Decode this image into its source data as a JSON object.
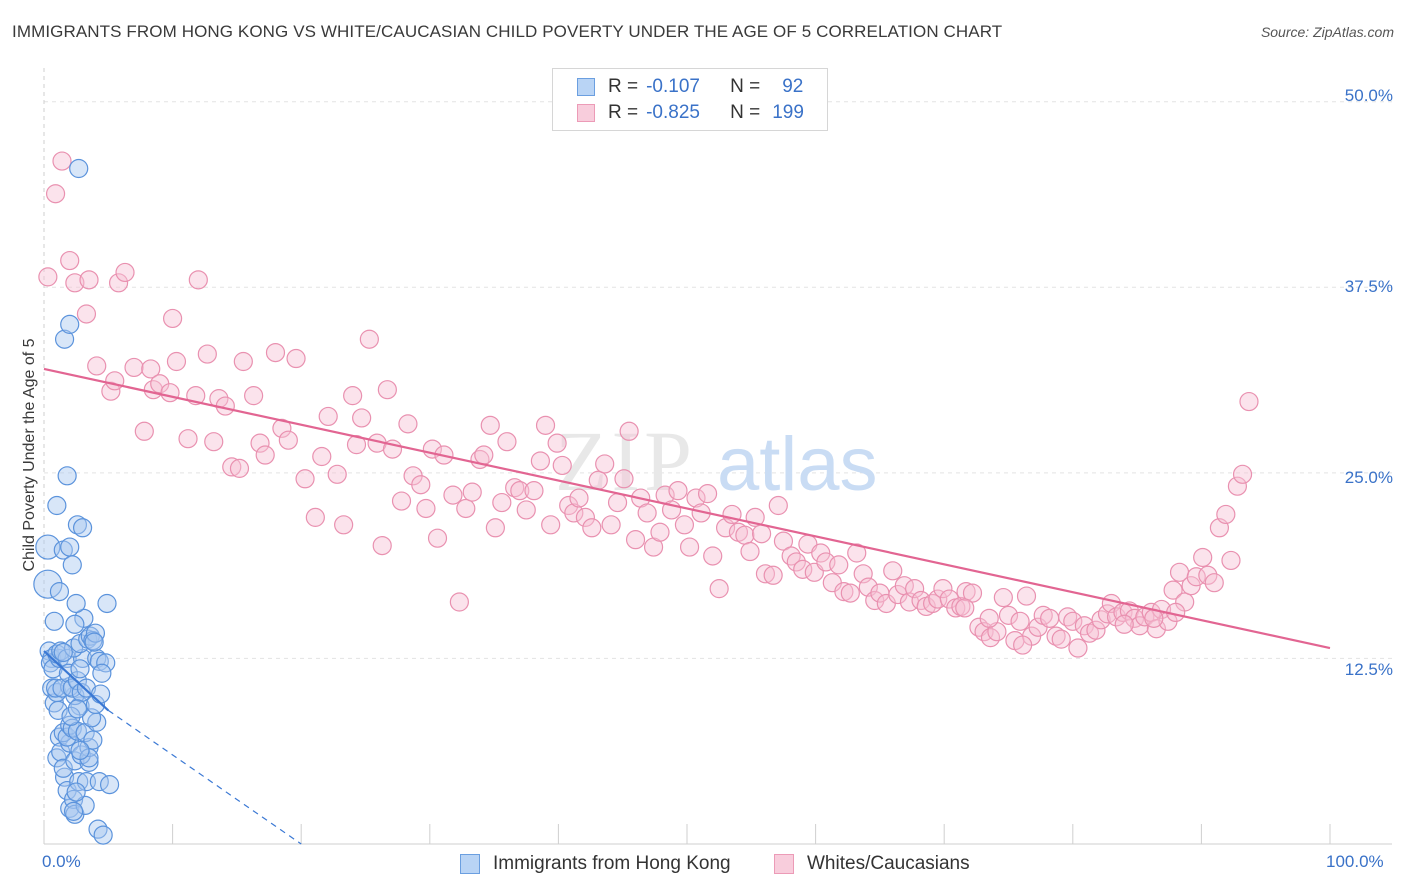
{
  "header": {
    "title": "IMMIGRANTS FROM HONG KONG VS WHITE/CAUCASIAN CHILD POVERTY UNDER THE AGE OF 5 CORRELATION CHART",
    "source": "Source: ZipAtlas.com"
  },
  "watermark": {
    "text_zip": "ZIP",
    "text_atlas": "atlas"
  },
  "colors": {
    "blue_fill": "#a9c8f0",
    "blue_stroke": "#5b93dc",
    "blue_line": "#3a78d4",
    "pink_fill": "#f6c2d4",
    "pink_stroke": "#e991b0",
    "pink_line": "#e26592",
    "tick_text": "#3a72c8",
    "grid": "#e3e3e3"
  },
  "legend": {
    "rows": [
      {
        "r_label": "R =",
        "r_value": "-0.107",
        "n_label": "N =",
        "n_value": "92"
      },
      {
        "r_label": "R =",
        "r_value": "-0.825",
        "n_label": "N =",
        "n_value": "199"
      }
    ]
  },
  "chart_data": {
    "type": "scatter",
    "title": "IMMIGRANTS FROM HONG KONG VS WHITE/CAUCASIAN CHILD POVERTY UNDER THE AGE OF 5 CORRELATION CHART",
    "xlabel": "",
    "ylabel": "Child Poverty Under the Age of 5",
    "xlim": [
      0,
      100
    ],
    "ylim": [
      0,
      52
    ],
    "x_tick_labels": [
      "0.0%",
      "100.0%"
    ],
    "y_ticks": [
      12.5,
      25.0,
      37.5,
      50.0
    ],
    "y_tick_labels": [
      "12.5%",
      "25.0%",
      "37.5%",
      "50.0%"
    ],
    "grid": true,
    "legend_position": "top-center",
    "series": [
      {
        "name": "Immigrants from Hong Kong",
        "color": "#5b93dc",
        "trend": {
          "x": [
            0,
            5
          ],
          "y": [
            13.0,
            9.0
          ],
          "dash_to": [
            20,
            0
          ]
        },
        "points": [
          [
            0.3,
            17.5
          ],
          [
            0.3,
            20.0
          ],
          [
            0.4,
            13.0
          ],
          [
            0.6,
            12.5
          ],
          [
            0.8,
            15.0
          ],
          [
            0.5,
            12.2
          ],
          [
            0.7,
            11.8
          ],
          [
            0.6,
            10.5
          ],
          [
            0.8,
            9.5
          ],
          [
            1.0,
            10.2
          ],
          [
            1.2,
            12.5
          ],
          [
            0.9,
            10.5
          ],
          [
            1.1,
            9.0
          ],
          [
            1.2,
            7.2
          ],
          [
            1.0,
            5.8
          ],
          [
            1.3,
            6.2
          ],
          [
            1.6,
            4.5
          ],
          [
            1.8,
            3.6
          ],
          [
            1.5,
            5.1
          ],
          [
            2.0,
            2.4
          ],
          [
            2.3,
            3.0
          ],
          [
            2.4,
            5.6
          ],
          [
            2.0,
            6.8
          ],
          [
            1.5,
            7.5
          ],
          [
            1.8,
            7.2
          ],
          [
            2.0,
            8.0
          ],
          [
            2.2,
            7.8
          ],
          [
            2.6,
            7.6
          ],
          [
            2.8,
            9.3
          ],
          [
            2.4,
            10.0
          ],
          [
            2.0,
            10.6
          ],
          [
            1.4,
            10.5
          ],
          [
            1.0,
            12.8
          ],
          [
            1.3,
            13.0
          ],
          [
            1.8,
            12.5
          ],
          [
            1.9,
            11.5
          ],
          [
            2.2,
            10.5
          ],
          [
            2.6,
            11.0
          ],
          [
            2.9,
            10.2
          ],
          [
            3.3,
            10.5
          ],
          [
            3.0,
            12.5
          ],
          [
            2.3,
            13.2
          ],
          [
            2.8,
            13.5
          ],
          [
            3.4,
            13.8
          ],
          [
            3.6,
            14.0
          ],
          [
            3.8,
            13.7
          ],
          [
            4.0,
            14.2
          ],
          [
            3.1,
            15.2
          ],
          [
            2.5,
            16.2
          ],
          [
            1.2,
            17.0
          ],
          [
            1.5,
            19.8
          ],
          [
            2.0,
            20.0
          ],
          [
            2.2,
            18.8
          ],
          [
            2.6,
            21.5
          ],
          [
            1.0,
            22.8
          ],
          [
            1.8,
            24.8
          ],
          [
            2.7,
            4.2
          ],
          [
            3.3,
            4.2
          ],
          [
            4.3,
            4.2
          ],
          [
            5.1,
            4.0
          ],
          [
            3.5,
            5.5
          ],
          [
            2.9,
            6.0
          ],
          [
            3.5,
            6.5
          ],
          [
            3.2,
            7.5
          ],
          [
            3.8,
            7.0
          ],
          [
            4.1,
            8.2
          ],
          [
            3.7,
            8.5
          ],
          [
            2.1,
            8.6
          ],
          [
            2.6,
            9.1
          ],
          [
            4.0,
            9.4
          ],
          [
            4.4,
            10.1
          ],
          [
            4.1,
            12.5
          ],
          [
            3.9,
            13.6
          ],
          [
            4.3,
            12.3
          ],
          [
            4.8,
            12.2
          ],
          [
            4.5,
            11.5
          ],
          [
            4.9,
            16.2
          ],
          [
            4.2,
            1.0
          ],
          [
            4.6,
            0.6
          ],
          [
            2.4,
            2.0
          ],
          [
            3.2,
            2.6
          ],
          [
            2.3,
            2.2
          ],
          [
            2.5,
            3.5
          ],
          [
            3.5,
            5.8
          ],
          [
            2.8,
            11.8
          ],
          [
            2.4,
            14.8
          ],
          [
            3.0,
            21.3
          ],
          [
            1.6,
            34.0
          ],
          [
            2.0,
            35.0
          ],
          [
            2.7,
            45.5
          ],
          [
            1.5,
            12.9
          ],
          [
            2.8,
            6.3
          ]
        ]
      },
      {
        "name": "Whites/Caucasians",
        "color": "#e991b0",
        "trend": {
          "x": [
            0,
            100
          ],
          "y": [
            32.0,
            13.2
          ]
        },
        "points": [
          [
            0.3,
            38.2
          ],
          [
            0.9,
            43.8
          ],
          [
            1.4,
            46.0
          ],
          [
            2.0,
            39.3
          ],
          [
            2.4,
            37.8
          ],
          [
            3.3,
            35.7
          ],
          [
            3.5,
            38.0
          ],
          [
            4.1,
            32.2
          ],
          [
            5.2,
            30.5
          ],
          [
            5.5,
            31.2
          ],
          [
            5.8,
            37.8
          ],
          [
            6.3,
            38.5
          ],
          [
            7.0,
            32.1
          ],
          [
            7.8,
            27.8
          ],
          [
            8.3,
            32.0
          ],
          [
            8.5,
            30.6
          ],
          [
            9.0,
            31.0
          ],
          [
            9.8,
            30.4
          ],
          [
            10.0,
            35.4
          ],
          [
            10.3,
            32.5
          ],
          [
            11.2,
            27.3
          ],
          [
            11.8,
            30.2
          ],
          [
            12.0,
            38.0
          ],
          [
            12.7,
            33.0
          ],
          [
            13.2,
            27.1
          ],
          [
            13.6,
            30.0
          ],
          [
            14.1,
            29.5
          ],
          [
            14.6,
            25.4
          ],
          [
            15.2,
            25.3
          ],
          [
            15.5,
            32.5
          ],
          [
            16.3,
            30.2
          ],
          [
            16.8,
            27.0
          ],
          [
            17.2,
            26.2
          ],
          [
            18.0,
            33.1
          ],
          [
            18.5,
            28.0
          ],
          [
            19.0,
            27.2
          ],
          [
            19.6,
            32.7
          ],
          [
            20.3,
            24.6
          ],
          [
            21.1,
            22.0
          ],
          [
            21.6,
            26.1
          ],
          [
            22.1,
            28.8
          ],
          [
            22.8,
            24.9
          ],
          [
            23.3,
            21.5
          ],
          [
            24.0,
            30.2
          ],
          [
            24.3,
            26.9
          ],
          [
            24.7,
            28.7
          ],
          [
            25.3,
            34.0
          ],
          [
            25.9,
            27.0
          ],
          [
            26.3,
            20.1
          ],
          [
            26.7,
            30.6
          ],
          [
            27.1,
            26.6
          ],
          [
            27.8,
            23.1
          ],
          [
            28.3,
            28.3
          ],
          [
            28.7,
            24.8
          ],
          [
            29.3,
            24.2
          ],
          [
            29.7,
            22.6
          ],
          [
            30.2,
            26.6
          ],
          [
            30.6,
            20.6
          ],
          [
            31.1,
            26.2
          ],
          [
            31.8,
            23.5
          ],
          [
            32.3,
            16.3
          ],
          [
            32.8,
            22.6
          ],
          [
            33.3,
            23.7
          ],
          [
            33.9,
            25.9
          ],
          [
            34.2,
            26.2
          ],
          [
            34.7,
            28.2
          ],
          [
            35.1,
            21.3
          ],
          [
            35.6,
            23.0
          ],
          [
            36.0,
            27.1
          ],
          [
            36.6,
            24.0
          ],
          [
            37.0,
            23.8
          ],
          [
            37.5,
            22.5
          ],
          [
            38.1,
            23.8
          ],
          [
            38.6,
            25.8
          ],
          [
            39.0,
            28.2
          ],
          [
            39.4,
            21.5
          ],
          [
            39.9,
            27.0
          ],
          [
            40.3,
            25.5
          ],
          [
            40.8,
            22.8
          ],
          [
            41.2,
            22.3
          ],
          [
            41.6,
            23.3
          ],
          [
            42.1,
            22.0
          ],
          [
            42.6,
            21.3
          ],
          [
            43.1,
            24.5
          ],
          [
            43.6,
            25.6
          ],
          [
            44.1,
            21.5
          ],
          [
            44.6,
            23.0
          ],
          [
            45.1,
            24.6
          ],
          [
            45.5,
            27.8
          ],
          [
            46.0,
            20.5
          ],
          [
            46.4,
            23.3
          ],
          [
            46.9,
            22.3
          ],
          [
            47.4,
            20.0
          ],
          [
            47.9,
            21.0
          ],
          [
            48.3,
            23.5
          ],
          [
            48.8,
            22.5
          ],
          [
            49.3,
            23.8
          ],
          [
            49.8,
            21.5
          ],
          [
            50.2,
            20.0
          ],
          [
            50.7,
            23.3
          ],
          [
            51.1,
            22.3
          ],
          [
            51.6,
            23.6
          ],
          [
            52.0,
            19.4
          ],
          [
            52.5,
            17.2
          ],
          [
            53.0,
            21.3
          ],
          [
            53.5,
            22.2
          ],
          [
            54.0,
            21.0
          ],
          [
            54.5,
            20.8
          ],
          [
            54.9,
            19.7
          ],
          [
            55.3,
            22.0
          ],
          [
            55.8,
            20.9
          ],
          [
            56.1,
            18.2
          ],
          [
            56.7,
            18.1
          ],
          [
            57.1,
            22.8
          ],
          [
            57.5,
            20.4
          ],
          [
            58.1,
            19.4
          ],
          [
            58.5,
            19.0
          ],
          [
            59.0,
            18.5
          ],
          [
            59.4,
            20.2
          ],
          [
            59.9,
            18.3
          ],
          [
            60.4,
            19.6
          ],
          [
            60.8,
            19.0
          ],
          [
            61.3,
            17.6
          ],
          [
            61.8,
            18.8
          ],
          [
            62.2,
            17.0
          ],
          [
            62.7,
            16.9
          ],
          [
            63.2,
            19.6
          ],
          [
            63.7,
            18.2
          ],
          [
            64.1,
            17.3
          ],
          [
            64.6,
            16.4
          ],
          [
            65.0,
            16.9
          ],
          [
            65.5,
            16.2
          ],
          [
            66.0,
            18.4
          ],
          [
            66.4,
            16.8
          ],
          [
            66.9,
            17.4
          ],
          [
            67.3,
            16.3
          ],
          [
            67.7,
            17.2
          ],
          [
            68.2,
            16.4
          ],
          [
            68.6,
            16.0
          ],
          [
            69.1,
            16.2
          ],
          [
            69.5,
            16.5
          ],
          [
            69.9,
            17.2
          ],
          [
            70.4,
            16.5
          ],
          [
            70.9,
            15.9
          ],
          [
            71.3,
            16.0
          ],
          [
            71.7,
            17.0
          ],
          [
            72.2,
            16.9
          ],
          [
            72.7,
            14.6
          ],
          [
            73.1,
            14.3
          ],
          [
            73.6,
            13.9
          ],
          [
            74.1,
            14.3
          ],
          [
            74.6,
            16.6
          ],
          [
            75.0,
            15.4
          ],
          [
            75.5,
            13.7
          ],
          [
            75.9,
            15.0
          ],
          [
            76.4,
            16.7
          ],
          [
            76.8,
            14.0
          ],
          [
            77.3,
            14.6
          ],
          [
            77.7,
            15.4
          ],
          [
            78.2,
            15.2
          ],
          [
            78.7,
            14.0
          ],
          [
            79.1,
            13.8
          ],
          [
            79.6,
            15.3
          ],
          [
            80.0,
            15.0
          ],
          [
            80.4,
            13.2
          ],
          [
            80.9,
            14.7
          ],
          [
            81.3,
            14.2
          ],
          [
            81.8,
            14.4
          ],
          [
            82.2,
            15.1
          ],
          [
            82.7,
            15.5
          ],
          [
            83.0,
            16.2
          ],
          [
            83.4,
            15.3
          ],
          [
            83.9,
            15.6
          ],
          [
            84.4,
            15.7
          ],
          [
            84.8,
            15.2
          ],
          [
            85.2,
            14.7
          ],
          [
            85.6,
            15.3
          ],
          [
            86.1,
            15.6
          ],
          [
            86.5,
            14.5
          ],
          [
            86.9,
            15.8
          ],
          [
            87.4,
            15.0
          ],
          [
            87.8,
            17.1
          ],
          [
            88.3,
            18.3
          ],
          [
            88.7,
            16.3
          ],
          [
            89.2,
            17.4
          ],
          [
            89.6,
            18.0
          ],
          [
            90.1,
            19.3
          ],
          [
            90.5,
            18.1
          ],
          [
            91.0,
            17.6
          ],
          [
            91.4,
            21.3
          ],
          [
            91.9,
            22.2
          ],
          [
            92.3,
            19.1
          ],
          [
            92.8,
            24.1
          ],
          [
            93.2,
            24.9
          ],
          [
            93.7,
            29.8
          ],
          [
            71.6,
            15.9
          ],
          [
            73.5,
            15.2
          ],
          [
            76.1,
            13.4
          ],
          [
            84.0,
            14.8
          ],
          [
            86.3,
            15.2
          ],
          [
            88.0,
            15.6
          ]
        ]
      }
    ]
  },
  "bottom_legend": [
    {
      "label": "Immigrants from Hong Kong"
    },
    {
      "label": "Whites/Caucasians"
    }
  ]
}
